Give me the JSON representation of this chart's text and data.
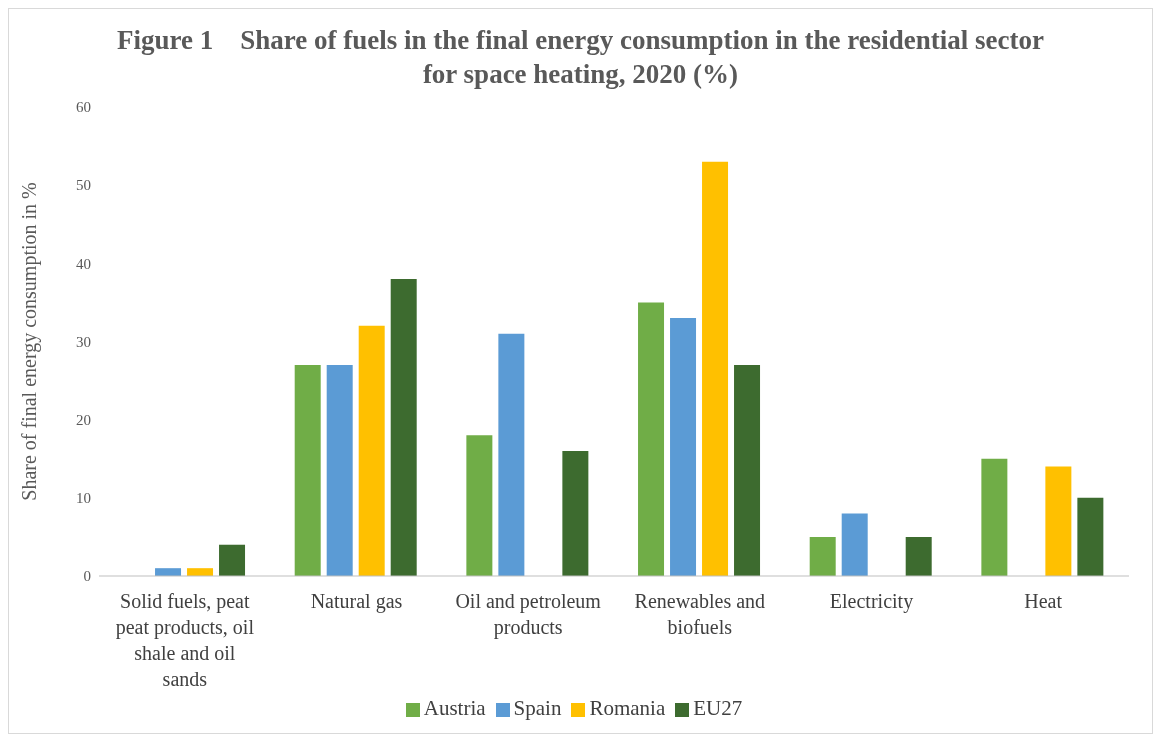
{
  "chart_data": {
    "type": "bar",
    "title": "Figure 1    Share of fuels in the final energy consumption in the residential sector for space heating, 2020 (%)",
    "ylabel": "Share of final energy consumption in %",
    "categories": [
      "Solid fuels, peat peat products, oil shale and oil sands",
      "Natural gas",
      "Oil and petroleum products",
      "Renewables and biofuels",
      "Electricity",
      "Heat"
    ],
    "series": [
      {
        "name": "Austria",
        "color": "#70ad47",
        "values": [
          0,
          27,
          18,
          35,
          5,
          15
        ]
      },
      {
        "name": "Spain",
        "color": "#5b9bd5",
        "values": [
          1,
          27,
          31,
          33,
          8,
          0
        ]
      },
      {
        "name": "Romania",
        "color": "#ffc000",
        "values": [
          1,
          32,
          0,
          53,
          0,
          14
        ]
      },
      {
        "name": "EU27",
        "color": "#3d6b2f",
        "values": [
          4,
          38,
          16,
          27,
          5,
          10
        ]
      }
    ],
    "ylim": [
      0,
      60
    ],
    "yticks": [
      0,
      10,
      20,
      30,
      40,
      50,
      60
    ],
    "grid": false,
    "legend": "bottom"
  }
}
